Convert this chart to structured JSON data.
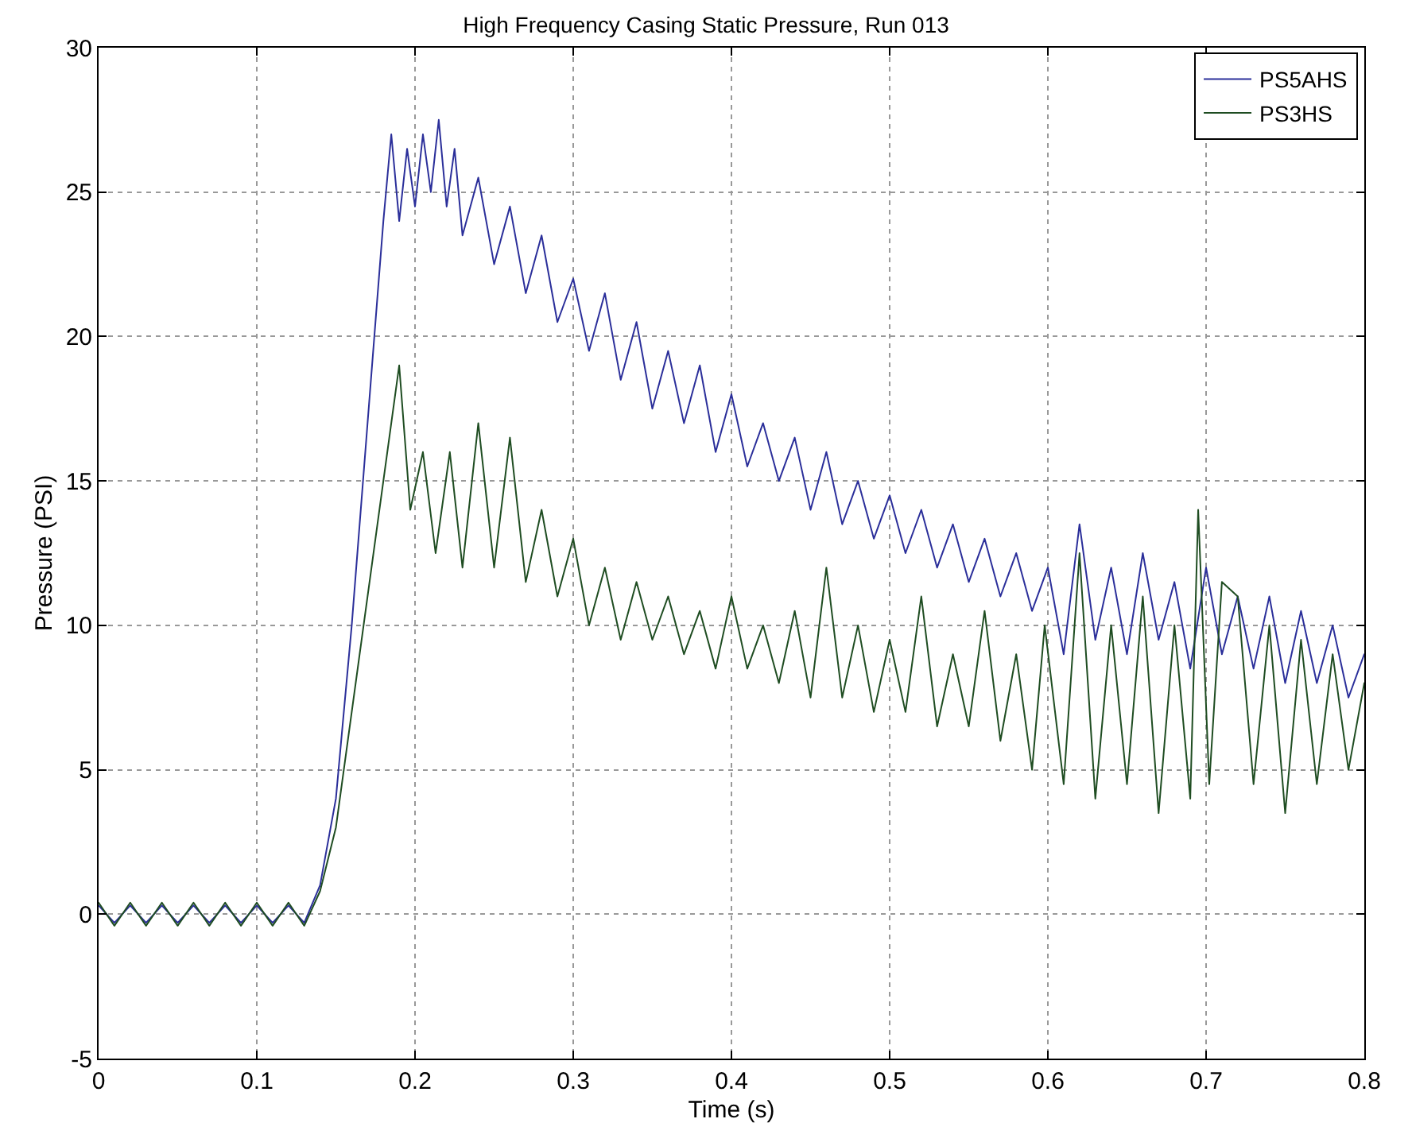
{
  "chart_data": {
    "type": "line",
    "title": "High Frequency Casing Static Pressure, Run 013",
    "xlabel": "Time (s)",
    "ylabel": "Pressure (PSI)",
    "xlim": [
      0,
      0.8
    ],
    "xticks": [
      0,
      0.1,
      0.2,
      0.3,
      0.4,
      0.5,
      0.6,
      0.7,
      0.8
    ],
    "ylim": [
      -5,
      30
    ],
    "yticks": [
      -5,
      0,
      5,
      10,
      15,
      20,
      25,
      30
    ],
    "grid": true,
    "legend": "top right",
    "marker": "none",
    "line_style": "solid",
    "series": [
      {
        "name": "PS5AHS",
        "color": "#2b2f9a",
        "x": [
          0,
          0.01,
          0.02,
          0.03,
          0.04,
          0.05,
          0.06,
          0.07,
          0.08,
          0.09,
          0.1,
          0.11,
          0.12,
          0.13,
          0.14,
          0.15,
          0.16,
          0.17,
          0.18,
          0.185,
          0.19,
          0.195,
          0.2,
          0.205,
          0.21,
          0.215,
          0.22,
          0.225,
          0.23,
          0.24,
          0.25,
          0.26,
          0.27,
          0.28,
          0.29,
          0.3,
          0.31,
          0.32,
          0.33,
          0.34,
          0.35,
          0.36,
          0.37,
          0.38,
          0.39,
          0.4,
          0.41,
          0.42,
          0.43,
          0.44,
          0.45,
          0.46,
          0.47,
          0.48,
          0.49,
          0.5,
          0.51,
          0.52,
          0.53,
          0.54,
          0.55,
          0.56,
          0.57,
          0.58,
          0.59,
          0.6,
          0.61,
          0.62,
          0.63,
          0.64,
          0.65,
          0.66,
          0.67,
          0.68,
          0.69,
          0.7,
          0.71,
          0.72,
          0.73,
          0.74,
          0.75,
          0.76,
          0.77,
          0.78,
          0.79,
          0.8
        ],
        "values": [
          0.3,
          -0.3,
          0.3,
          -0.3,
          0.3,
          -0.3,
          0.3,
          -0.3,
          0.3,
          -0.3,
          0.3,
          -0.3,
          0.3,
          -0.3,
          1,
          4,
          10,
          17,
          24,
          27,
          24,
          26.5,
          24.5,
          27,
          25,
          27.5,
          24.5,
          26.5,
          23.5,
          25.5,
          22.5,
          24.5,
          21.5,
          23.5,
          20.5,
          22,
          19.5,
          21.5,
          18.5,
          20.5,
          17.5,
          19.5,
          17,
          19,
          16,
          18,
          15.5,
          17,
          15,
          16.5,
          14,
          16,
          13.5,
          15,
          13,
          14.5,
          12.5,
          14,
          12,
          13.5,
          11.5,
          13,
          11,
          12.5,
          10.5,
          12,
          9,
          13.5,
          9.5,
          12,
          9,
          12.5,
          9.5,
          11.5,
          8.5,
          12,
          9,
          11,
          8.5,
          11,
          8,
          10.5,
          8,
          10,
          7.5,
          9
        ]
      },
      {
        "name": "PS3HS",
        "color": "#1f4d22",
        "x": [
          0,
          0.01,
          0.02,
          0.03,
          0.04,
          0.05,
          0.06,
          0.07,
          0.08,
          0.09,
          0.1,
          0.11,
          0.12,
          0.13,
          0.14,
          0.15,
          0.16,
          0.17,
          0.18,
          0.185,
          0.19,
          0.197,
          0.205,
          0.213,
          0.222,
          0.23,
          0.24,
          0.25,
          0.26,
          0.27,
          0.28,
          0.29,
          0.3,
          0.31,
          0.32,
          0.33,
          0.34,
          0.35,
          0.36,
          0.37,
          0.38,
          0.39,
          0.4,
          0.41,
          0.42,
          0.43,
          0.44,
          0.45,
          0.46,
          0.47,
          0.48,
          0.49,
          0.5,
          0.51,
          0.52,
          0.53,
          0.54,
          0.55,
          0.56,
          0.57,
          0.58,
          0.59,
          0.598,
          0.61,
          0.62,
          0.63,
          0.64,
          0.65,
          0.66,
          0.67,
          0.68,
          0.69,
          0.695,
          0.702,
          0.71,
          0.72,
          0.73,
          0.74,
          0.75,
          0.76,
          0.77,
          0.78,
          0.79,
          0.8
        ],
        "values": [
          0.4,
          -0.4,
          0.4,
          -0.4,
          0.4,
          -0.4,
          0.4,
          -0.4,
          0.4,
          -0.4,
          0.4,
          -0.4,
          0.4,
          -0.4,
          0.8,
          3,
          7,
          11,
          15,
          17,
          19,
          14,
          16,
          12.5,
          16,
          12,
          17,
          12,
          16.5,
          11.5,
          14,
          11,
          13,
          10,
          12,
          9.5,
          11.5,
          9.5,
          11,
          9,
          10.5,
          8.5,
          11,
          8.5,
          10,
          8,
          10.5,
          7.5,
          12,
          7.5,
          10,
          7,
          9.5,
          7,
          11,
          6.5,
          9,
          6.5,
          10.5,
          6,
          9,
          5,
          10,
          4.5,
          12.5,
          4,
          10,
          4.5,
          11,
          3.5,
          10,
          4,
          14,
          4.5,
          11.5,
          11,
          4.5,
          10,
          3.5,
          9.5,
          4.5,
          9,
          5,
          8
        ]
      }
    ]
  }
}
